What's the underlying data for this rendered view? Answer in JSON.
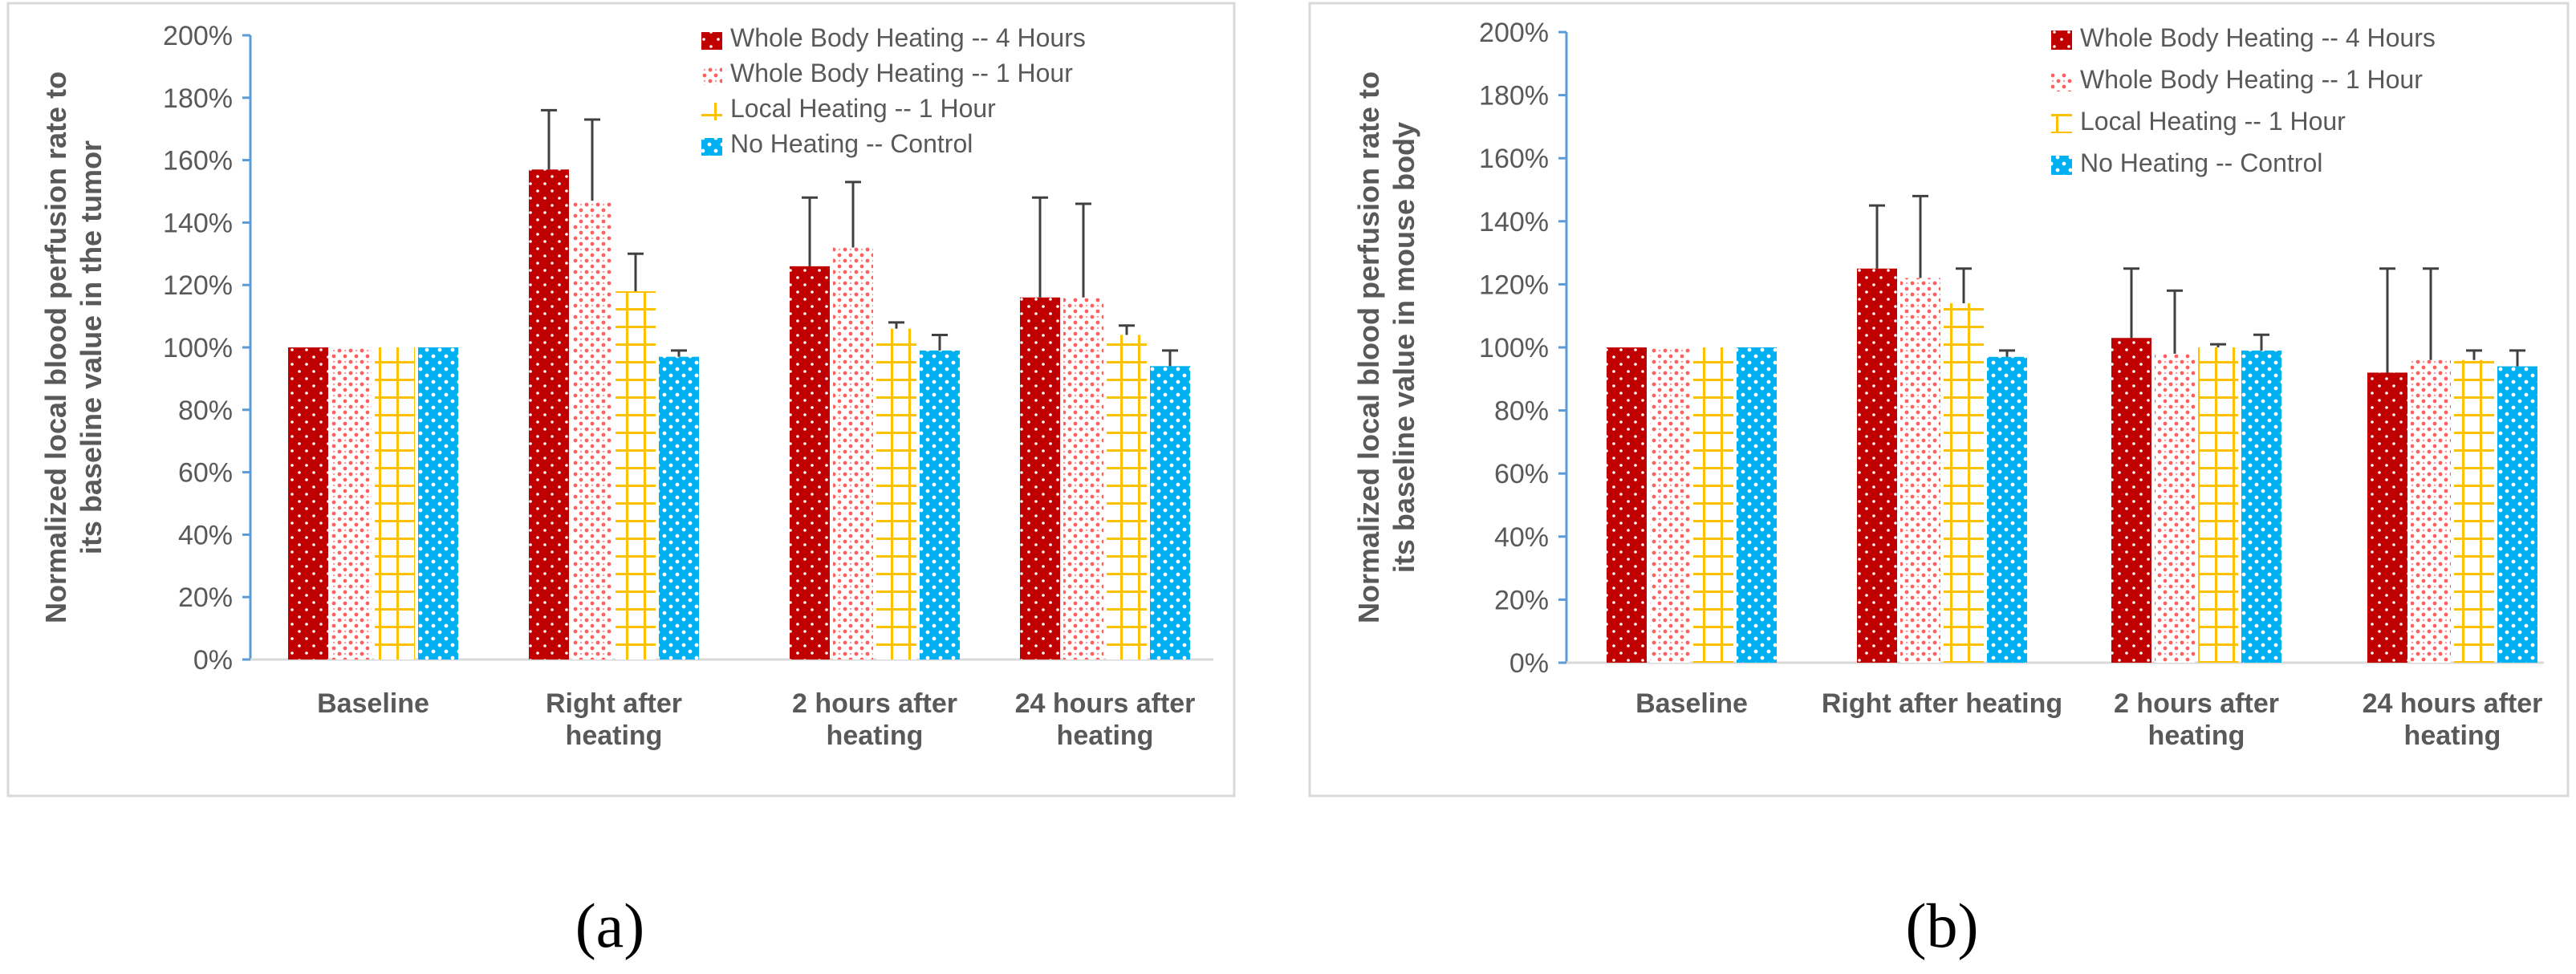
{
  "figure": {
    "panel_labels": [
      "(a)",
      "(b)"
    ]
  },
  "colors": {
    "whole4": "#c00000",
    "whole1": "#ff6b6b",
    "local1": "#ffc000",
    "control": "#00b0f0",
    "axis": "#5b9bd5",
    "grid": "#d9d9d9",
    "text": "#595959"
  },
  "chart_data": [
    {
      "type": "bar",
      "ylabel_lines": [
        "Normalized local blood perfusion rate to",
        "its baseline value in the tumor"
      ],
      "xlabel": "",
      "ylim": [
        0,
        200
      ],
      "yticks": [
        "0%",
        "20%",
        "40%",
        "60%",
        "80%",
        "100%",
        "120%",
        "140%",
        "160%",
        "180%",
        "200%"
      ],
      "categories": [
        [
          "Baseline"
        ],
        [
          "Right after",
          "heating"
        ],
        [
          "2 hours after",
          "heating"
        ],
        [
          "24 hours after",
          "heating"
        ]
      ],
      "legend_position": "top-right",
      "series": [
        {
          "name": "Whole Body Heating -- 4 Hours",
          "values": [
            100,
            157,
            126,
            116
          ],
          "errors": [
            0,
            19,
            22,
            32
          ]
        },
        {
          "name": "Whole Body Heating  -- 1 Hour",
          "values": [
            100,
            147,
            132,
            116
          ],
          "errors": [
            0,
            26,
            21,
            30
          ]
        },
        {
          "name": "Local Heating -- 1 Hour",
          "values": [
            100,
            118,
            106,
            104
          ],
          "errors": [
            0,
            12,
            2,
            3
          ]
        },
        {
          "name": "No Heating -- Control",
          "values": [
            100,
            97,
            99,
            94
          ],
          "errors": [
            0,
            2,
            5,
            5
          ]
        }
      ]
    },
    {
      "type": "bar",
      "ylabel_lines": [
        "Normalized local blood perfusion rate to",
        "its baseline value in mouse body"
      ],
      "xlabel": "",
      "ylim": [
        0,
        200
      ],
      "yticks": [
        "0%",
        "20%",
        "40%",
        "60%",
        "80%",
        "100%",
        "120%",
        "140%",
        "160%",
        "180%",
        "200%"
      ],
      "categories": [
        [
          "Baseline"
        ],
        [
          "Right after heating"
        ],
        [
          "2 hours after",
          "heating"
        ],
        [
          "24 hours after",
          "heating"
        ]
      ],
      "legend_position": "top-right",
      "series": [
        {
          "name": "Whole Body Heating -- 4 Hours",
          "values": [
            100,
            125,
            103,
            92
          ],
          "errors": [
            0,
            20,
            22,
            33
          ]
        },
        {
          "name": "Whole Body Heating  -- 1 Hour",
          "values": [
            100,
            122,
            98,
            96
          ],
          "errors": [
            0,
            26,
            20,
            29
          ]
        },
        {
          "name": "Local Heating -- 1 Hour",
          "values": [
            100,
            114,
            100,
            96
          ],
          "errors": [
            0,
            11,
            1,
            3
          ]
        },
        {
          "name": "No Heating -- Control",
          "values": [
            100,
            97,
            99,
            94
          ],
          "errors": [
            0,
            2,
            5,
            5
          ]
        }
      ]
    }
  ]
}
